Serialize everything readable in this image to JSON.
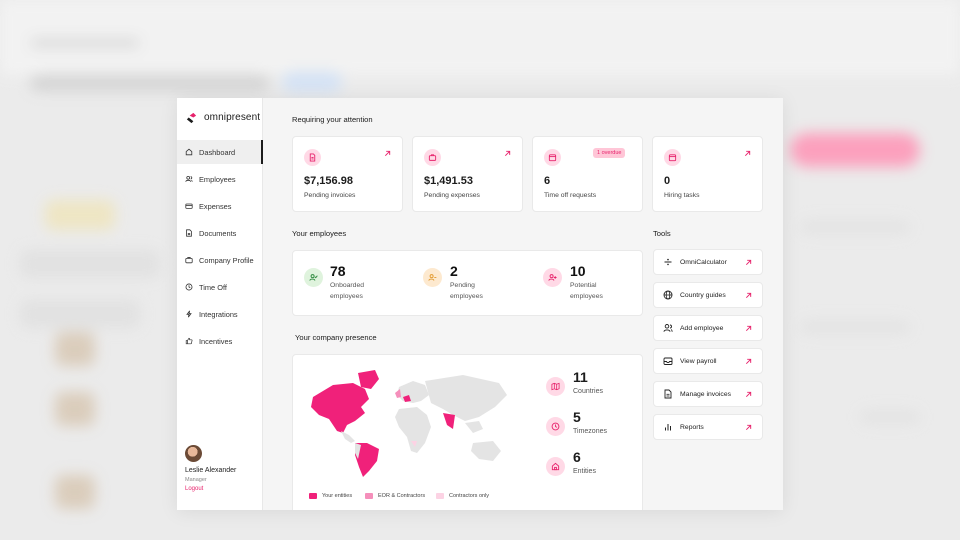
{
  "brand": {
    "name": "omnipresent",
    "accent": "#e7236c",
    "accent_light": "#ffd9e6"
  },
  "sidebar": {
    "items": [
      {
        "label": "Dashboard",
        "icon": "home-icon",
        "active": true
      },
      {
        "label": "Employees",
        "icon": "users-icon",
        "active": false
      },
      {
        "label": "Expenses",
        "icon": "card-icon",
        "active": false
      },
      {
        "label": "Documents",
        "icon": "document-icon",
        "active": false
      },
      {
        "label": "Company Profile",
        "icon": "briefcase-icon",
        "active": false
      },
      {
        "label": "Time Off",
        "icon": "clock-icon",
        "active": false
      },
      {
        "label": "Integrations",
        "icon": "lightning-icon",
        "active": false
      },
      {
        "label": "Incentives",
        "icon": "thumbs-up-icon",
        "active": false
      }
    ],
    "user": {
      "name": "Leslie Alexander",
      "role": "Manager",
      "logout": "Logout"
    }
  },
  "attention": {
    "title": "Requiring your attention",
    "cards": [
      {
        "value": "$7,156.98",
        "label": "Pending invoices",
        "icon": "invoice-icon"
      },
      {
        "value": "$1,491.53",
        "label": "Pending expenses",
        "icon": "briefcase-icon"
      },
      {
        "value": "6",
        "label": "Time off requests",
        "icon": "calendar-icon",
        "badge": "1 overdue"
      },
      {
        "value": "0",
        "label": "Hiring tasks",
        "icon": "calendar-icon"
      }
    ]
  },
  "employees": {
    "title": "Your employees",
    "stats": [
      {
        "value": "78",
        "label_line1": "Onboarded",
        "label_line2": "employees",
        "color": "#dff3dd",
        "icon": "user-check-icon"
      },
      {
        "value": "2",
        "label_line1": "Pending",
        "label_line2": "employees",
        "color": "#fde9cf",
        "icon": "user-pending-icon"
      },
      {
        "value": "10",
        "label_line1": "Potential",
        "label_line2": "employees",
        "color": "#ffd9e6",
        "icon": "user-plus-icon"
      }
    ]
  },
  "presence": {
    "title": "Your company presence",
    "stats": [
      {
        "value": "11",
        "label": "Countries",
        "icon": "map-icon"
      },
      {
        "value": "5",
        "label": "Timezones",
        "icon": "clock-icon"
      },
      {
        "value": "6",
        "label": "Entities",
        "icon": "building-icon"
      }
    ],
    "legend": [
      {
        "label": "Your entities",
        "color": "#f0217a"
      },
      {
        "label": "EOR & Contractors",
        "color": "#f58fbb"
      },
      {
        "label": "Contractors only",
        "color": "#fcd3e4"
      }
    ]
  },
  "tools": {
    "title": "Tools",
    "items": [
      {
        "label": "OmniCalculator",
        "icon": "calculator-icon"
      },
      {
        "label": "Country guides",
        "icon": "globe-icon"
      },
      {
        "label": "Add employee",
        "icon": "add-user-icon"
      },
      {
        "label": "View payroll",
        "icon": "inbox-icon"
      },
      {
        "label": "Manage invoices",
        "icon": "document-icon"
      },
      {
        "label": "Reports",
        "icon": "bar-chart-icon"
      }
    ]
  }
}
